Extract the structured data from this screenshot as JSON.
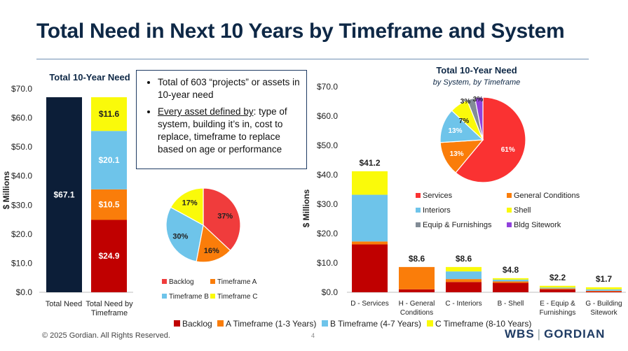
{
  "slide": {
    "title": "Total Need in Next 10 Years by Timeframe and System",
    "footer": "© 2025 Gordian. All Rights Reserved.",
    "page_number": "4",
    "logo_left": "WBS",
    "logo_right": "GORDIAN"
  },
  "textbox": {
    "bullet1": "Total of 603 “projects” or assets in 10-year need",
    "bullet2_underlined": "Every asset defined by",
    "bullet2_rest": ": type of system, building it’s in, cost to replace, timeframe to replace based on age or performance"
  },
  "colors": {
    "backlog": "#c00000",
    "a": "#fa7d0a",
    "b": "#6ec4ea",
    "c": "#fafa0a",
    "total": "#0c1e38",
    "services": "#fa3232",
    "general": "#fa7d0a",
    "interiors": "#6ec4ea",
    "shell": "#fafa0a",
    "equip": "#828c96",
    "sitework": "#9141dc",
    "axis": "#bfbfbf"
  },
  "bottom_legend": [
    "Backlog",
    "A Timeframe (1-3 Years)",
    "B Timeframe (4-7 Years)",
    "C Timeframe (8-10 Years)"
  ],
  "chart_data": [
    {
      "type": "bar",
      "title": "Total 10-Year Need",
      "ylabel": "$ Millions",
      "ylim": [
        0,
        70
      ],
      "yticks": [
        "$0.0",
        "$10.0",
        "$20.0",
        "$30.0",
        "$40.0",
        "$50.0",
        "$60.0",
        "$70.0"
      ],
      "categories": [
        "Total Need",
        "Total Need by Timeframe"
      ],
      "series": [
        {
          "name": "Total Need",
          "values": [
            67.1,
            0
          ],
          "labels": [
            "$67.1",
            ""
          ]
        },
        {
          "name": "Backlog",
          "values": [
            0,
            24.9
          ],
          "labels": [
            "",
            "$24.9"
          ]
        },
        {
          "name": "A Timeframe",
          "values": [
            0,
            10.5
          ],
          "labels": [
            "",
            "$10.5"
          ]
        },
        {
          "name": "B Timeframe",
          "values": [
            0,
            20.1
          ],
          "labels": [
            "",
            "$20.1"
          ]
        },
        {
          "name": "C Timeframe",
          "values": [
            0,
            11.6
          ],
          "labels": [
            "",
            "$11.6"
          ]
        }
      ]
    },
    {
      "type": "pie",
      "slices": [
        {
          "name": "Backlog",
          "value": 37,
          "label": "37%"
        },
        {
          "name": "Timeframe A",
          "value": 16,
          "label": "16%"
        },
        {
          "name": "Timeframe B",
          "value": 30,
          "label": "30%"
        },
        {
          "name": "Timeframe C",
          "value": 17,
          "label": "17%"
        }
      ],
      "legend": [
        "Backlog",
        "Timeframe A",
        "Timeframe B",
        "Timeframe C"
      ]
    },
    {
      "type": "bar",
      "ylabel": "$ Millions",
      "ylim": [
        0,
        70
      ],
      "yticks": [
        "$0.0",
        "$10.0",
        "$20.0",
        "$30.0",
        "$40.0",
        "$50.0",
        "$60.0",
        "$70.0"
      ],
      "categories": [
        {
          "line1": "D - Services",
          "line2": ""
        },
        {
          "line1": "H - General",
          "line2": "Conditions"
        },
        {
          "line1": "C - Interiors",
          "line2": ""
        },
        {
          "line1": "B - Shell",
          "line2": ""
        },
        {
          "line1": "E - Equip &",
          "line2": "Furnishings"
        },
        {
          "line1": "G - Building",
          "line2": "Sitework"
        }
      ],
      "totals": [
        "$41.2",
        "$8.6",
        "$8.6",
        "$4.8",
        "$2.2",
        "$1.7"
      ],
      "series": [
        {
          "name": "Backlog",
          "values": [
            16.3,
            1.0,
            3.5,
            3.2,
            1.0,
            0.3
          ]
        },
        {
          "name": "A Timeframe",
          "values": [
            1.0,
            7.6,
            1.0,
            0.5,
            0.3,
            0.2
          ]
        },
        {
          "name": "B Timeframe",
          "values": [
            15.9,
            0,
            2.6,
            0.6,
            0.3,
            0.5
          ]
        },
        {
          "name": "C Timeframe",
          "values": [
            8.0,
            0,
            1.5,
            0.5,
            0.6,
            0.7
          ]
        }
      ]
    },
    {
      "type": "pie",
      "title": "Total 10-Year Need",
      "subtitle": "by System, by Timeframe",
      "slices": [
        {
          "name": "Services",
          "value": 61,
          "label": "61%"
        },
        {
          "name": "General Conditions",
          "value": 13,
          "label": "13%"
        },
        {
          "name": "Interiors",
          "value": 13,
          "label": "13%"
        },
        {
          "name": "Shell",
          "value": 7,
          "label": "7%"
        },
        {
          "name": "Equip & Furnishings",
          "value": 3,
          "label": "3%"
        },
        {
          "name": "Bldg Sitework",
          "value": 3,
          "label": "3%"
        }
      ],
      "legend": [
        "Services",
        "General Conditions",
        "Interiors",
        "Shell",
        "Equip & Furnishings",
        "Bldg Sitework"
      ]
    }
  ]
}
